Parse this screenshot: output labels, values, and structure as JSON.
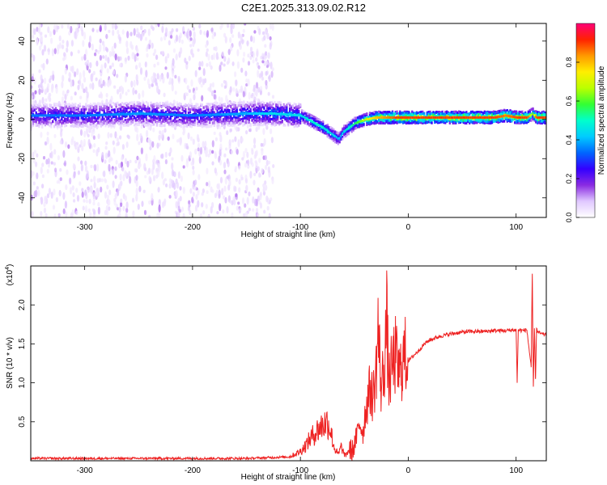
{
  "title": "C2E1.2025.313.09.02.R12",
  "colors": {
    "snr_line": "#ee2222",
    "axis": "#000000"
  },
  "chart_data": [
    {
      "type": "heatmap",
      "title": "C2E1.2025.313.09.02.R12",
      "xlabel": "Height of straight line (km)",
      "ylabel": "Frequency (Hz)",
      "xlim": [
        -350,
        128
      ],
      "ylim": [
        -50,
        49
      ],
      "xticks": [
        -300,
        -200,
        -100,
        0,
        100
      ],
      "xtick_labels": [
        "-300",
        "-200",
        "-100",
        "0",
        "100"
      ],
      "yticks": [
        -40,
        -20,
        0,
        20,
        40
      ],
      "ytick_labels": [
        "-40",
        "-20",
        "0",
        "20",
        "40"
      ],
      "colorbar": {
        "label": "Normalized spectral amplitude",
        "range": [
          0,
          1
        ],
        "ticks": [
          0.0,
          0.2,
          0.4,
          0.6,
          0.8
        ],
        "tick_labels": [
          "0.0",
          "0.2",
          "0.4",
          "0.6",
          "0.8"
        ],
        "colormap": [
          "#ffffff",
          "#e0c8ff",
          "#8a2be2",
          "#3300ff",
          "#0066ff",
          "#00ccff",
          "#00ffcc",
          "#33ff33",
          "#bbff00",
          "#ffee00",
          "#ff9900",
          "#ff2200",
          "#ff0077"
        ]
      },
      "ridge": {
        "x": [
          -350,
          -300,
          -250,
          -200,
          -150,
          -125,
          -100,
          -90,
          -80,
          -70,
          -65,
          -60,
          -55,
          -50,
          -40,
          -30,
          -20,
          -10,
          0,
          20,
          50,
          80,
          90,
          100,
          110,
          115,
          118,
          128
        ],
        "y": [
          2,
          2,
          3,
          2,
          3,
          3,
          2,
          -1,
          -4,
          -8,
          -10,
          -6,
          -4,
          -2,
          0,
          1,
          1,
          1,
          1,
          1,
          1,
          1,
          2,
          1,
          1,
          3,
          1,
          1
        ],
        "max_amplitude": [
          0.35,
          0.35,
          0.38,
          0.35,
          0.4,
          0.45,
          0.45,
          0.5,
          0.5,
          0.45,
          0.4,
          0.45,
          0.5,
          0.55,
          0.7,
          0.8,
          0.85,
          0.9,
          0.9,
          0.9,
          0.9,
          0.9,
          0.85,
          0.9,
          0.9,
          0.6,
          0.9,
          0.9
        ]
      }
    },
    {
      "type": "line",
      "xlabel": "Height of straight line (km)",
      "ylabel": "SNR (10 * v/v)",
      "scale_label": "(x10",
      "scale_exponent": "4",
      "xlim": [
        -350,
        128
      ],
      "ylim": [
        0,
        2.5
      ],
      "xticks": [
        -300,
        -200,
        -100,
        0,
        100
      ],
      "xtick_labels": [
        "-300",
        "-200",
        "-100",
        "0",
        "100"
      ],
      "yticks": [
        0.5,
        1.0,
        1.5,
        2.0
      ],
      "ytick_labels": [
        "0.5",
        "1.0",
        "1.5",
        "2.0"
      ],
      "series": [
        {
          "name": "SNR",
          "x": [
            -350,
            -300,
            -250,
            -200,
            -150,
            -110,
            -100,
            -95,
            -90,
            -85,
            -80,
            -75,
            -72,
            -70,
            -68,
            -65,
            -62,
            -60,
            -58,
            -55,
            -52,
            -50,
            -48,
            -45,
            -42,
            -40,
            -38,
            -35,
            -33,
            -30,
            -28,
            -25,
            -22,
            -20,
            -18,
            -15,
            -12,
            -10,
            -8,
            -5,
            -2,
            0,
            5,
            10,
            15,
            20,
            30,
            40,
            50,
            60,
            70,
            80,
            90,
            100,
            101,
            102,
            105,
            110,
            114,
            115,
            116,
            117,
            118,
            119,
            120,
            125,
            128
          ],
          "y": [
            0.03,
            0.03,
            0.03,
            0.03,
            0.03,
            0.05,
            0.12,
            0.2,
            0.3,
            0.38,
            0.45,
            0.5,
            0.4,
            0.25,
            0.15,
            0.08,
            0.18,
            0.1,
            0.06,
            0.15,
            0.12,
            0.2,
            0.3,
            0.5,
            0.35,
            0.6,
            0.75,
            0.95,
            0.8,
            1.1,
            1.7,
            0.9,
            1.3,
            1.8,
            1.0,
            1.2,
            1.35,
            1.2,
            1.1,
            1.3,
            1.35,
            1.28,
            1.35,
            1.42,
            1.5,
            1.55,
            1.6,
            1.63,
            1.65,
            1.66,
            1.66,
            1.67,
            1.67,
            1.68,
            1.0,
            1.68,
            1.67,
            1.68,
            1.2,
            2.4,
            0.95,
            1.7,
            1.05,
            1.7,
            1.65,
            1.62,
            1.62
          ]
        }
      ]
    }
  ]
}
